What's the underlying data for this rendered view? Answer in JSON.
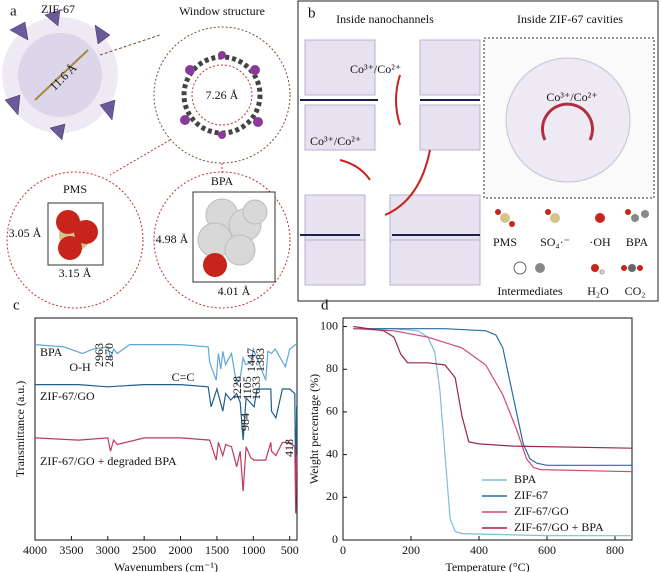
{
  "panel_a": {
    "label": "a",
    "title": "ZIF-67",
    "window_title": "Window structure",
    "cavity_size": "11.6 Å",
    "window_size": "7.26 Å",
    "pms": {
      "title": "PMS",
      "height": "3.05 Å",
      "width": "3.15 Å"
    },
    "bpa": {
      "title": "BPA",
      "height": "4.98 Å",
      "width": "4.01 Å"
    }
  },
  "panel_b": {
    "label": "b",
    "left_title": "Inside nanochannels",
    "right_title": "Inside ZIF-67 cavities",
    "catalyst_labels": [
      "Co³⁺/Co²⁺",
      "Co³⁺/Co²⁺",
      "Co³⁺/Co²⁺"
    ],
    "legend": [
      "PMS",
      "SO₄·⁻",
      "·OH",
      "BPA",
      "Intermediates",
      "H₂O",
      "CO₂"
    ]
  },
  "chart_data": [
    {
      "type": "line",
      "panel_label": "c",
      "xlabel": "Wavenumbers (cm⁻¹)",
      "ylabel": "Transmittance (a.u.)",
      "xlim": [
        4000,
        400
      ],
      "xticks": [
        4000,
        3500,
        3000,
        2500,
        2000,
        1500,
        1000,
        500
      ],
      "ylim": [
        0,
        100
      ],
      "annotations": [
        "O-H",
        "2963",
        "2870",
        "C=C",
        "1447",
        "1383",
        "1228",
        "1105",
        "1033",
        "984",
        "418"
      ],
      "series": [
        {
          "name": "BPA",
          "color": "#5fa8d3",
          "x": [
            4000,
            3600,
            3350,
            3200,
            3000,
            2963,
            2920,
            2870,
            2700,
            2000,
            1620,
            1600,
            1510,
            1480,
            1447,
            1420,
            1383,
            1300,
            1228,
            1175,
            1140,
            1105,
            1033,
            1000,
            830,
            800,
            750,
            700,
            560,
            500,
            420,
            400
          ],
          "values": [
            88,
            87,
            84,
            86,
            87,
            82,
            86,
            84,
            88,
            88,
            87,
            80,
            72,
            84,
            77,
            85,
            79,
            84,
            70,
            74,
            82,
            79,
            80,
            86,
            72,
            85,
            84,
            86,
            78,
            86,
            88,
            88
          ]
        },
        {
          "name": "ZIF-67/GO",
          "color": "#1f5f8b",
          "x": [
            4000,
            3400,
            3000,
            2500,
            2000,
            1620,
            1580,
            1500,
            1420,
            1380,
            1310,
            1230,
            1180,
            1140,
            1100,
            990,
            950,
            760,
            750,
            690,
            600,
            500,
            430,
            418,
            405,
            400
          ],
          "values": [
            70,
            70,
            69,
            70,
            70,
            69,
            60,
            68,
            58,
            66,
            63,
            66,
            62,
            45,
            64,
            60,
            68,
            68,
            58,
            55,
            68,
            68,
            66,
            20,
            60,
            60
          ]
        },
        {
          "name": "ZIF-67/GO + degraded BPA",
          "color": "#c0395f",
          "x": [
            4000,
            3400,
            3000,
            2963,
            2920,
            2870,
            2500,
            2000,
            1600,
            1510,
            1480,
            1420,
            1380,
            1300,
            1228,
            1180,
            1140,
            1100,
            1033,
            990,
            830,
            760,
            750,
            690,
            600,
            500,
            430,
            418,
            405,
            400
          ],
          "values": [
            46,
            45,
            46,
            40,
            45,
            43,
            46,
            46,
            45,
            36,
            44,
            38,
            43,
            42,
            33,
            40,
            22,
            42,
            37,
            36,
            36,
            44,
            40,
            38,
            44,
            44,
            42,
            12,
            38,
            38
          ]
        }
      ]
    },
    {
      "type": "line",
      "panel_label": "d",
      "xlabel": "Temperature (°C)",
      "ylabel": "Weight percentage (%)",
      "xlim": [
        0,
        850
      ],
      "xticks": [
        0,
        200,
        400,
        600,
        800
      ],
      "ylim": [
        0,
        104
      ],
      "yticks": [
        0,
        20,
        40,
        60,
        80,
        100
      ],
      "legend": "lower right",
      "series": [
        {
          "name": "BPA",
          "color": "#7dbcdf",
          "x": [
            30,
            150,
            220,
            250,
            270,
            285,
            300,
            315,
            330,
            350,
            600,
            850
          ],
          "values": [
            99,
            99,
            98,
            95,
            88,
            70,
            40,
            10,
            4,
            3,
            2,
            2
          ]
        },
        {
          "name": "ZIF-67",
          "color": "#2b6c9c",
          "x": [
            30,
            200,
            300,
            420,
            450,
            470,
            490,
            510,
            530,
            550,
            570,
            600,
            850
          ],
          "values": [
            99,
            99,
            99,
            98,
            96,
            90,
            75,
            60,
            45,
            38,
            36,
            35,
            35
          ]
        },
        {
          "name": "ZIF-67/GO",
          "color": "#d0497a",
          "x": [
            30,
            150,
            250,
            350,
            420,
            470,
            510,
            540,
            560,
            580,
            850
          ],
          "values": [
            99,
            98,
            95,
            90,
            82,
            68,
            52,
            38,
            34,
            33,
            32
          ]
        },
        {
          "name": "ZIF-67/GO + BPA",
          "color": "#9c2548",
          "x": [
            30,
            120,
            150,
            170,
            190,
            250,
            300,
            330,
            350,
            370,
            400,
            500,
            850
          ],
          "values": [
            100,
            98,
            95,
            87,
            83,
            83,
            82,
            76,
            58,
            46,
            45,
            44,
            43
          ]
        }
      ]
    }
  ]
}
